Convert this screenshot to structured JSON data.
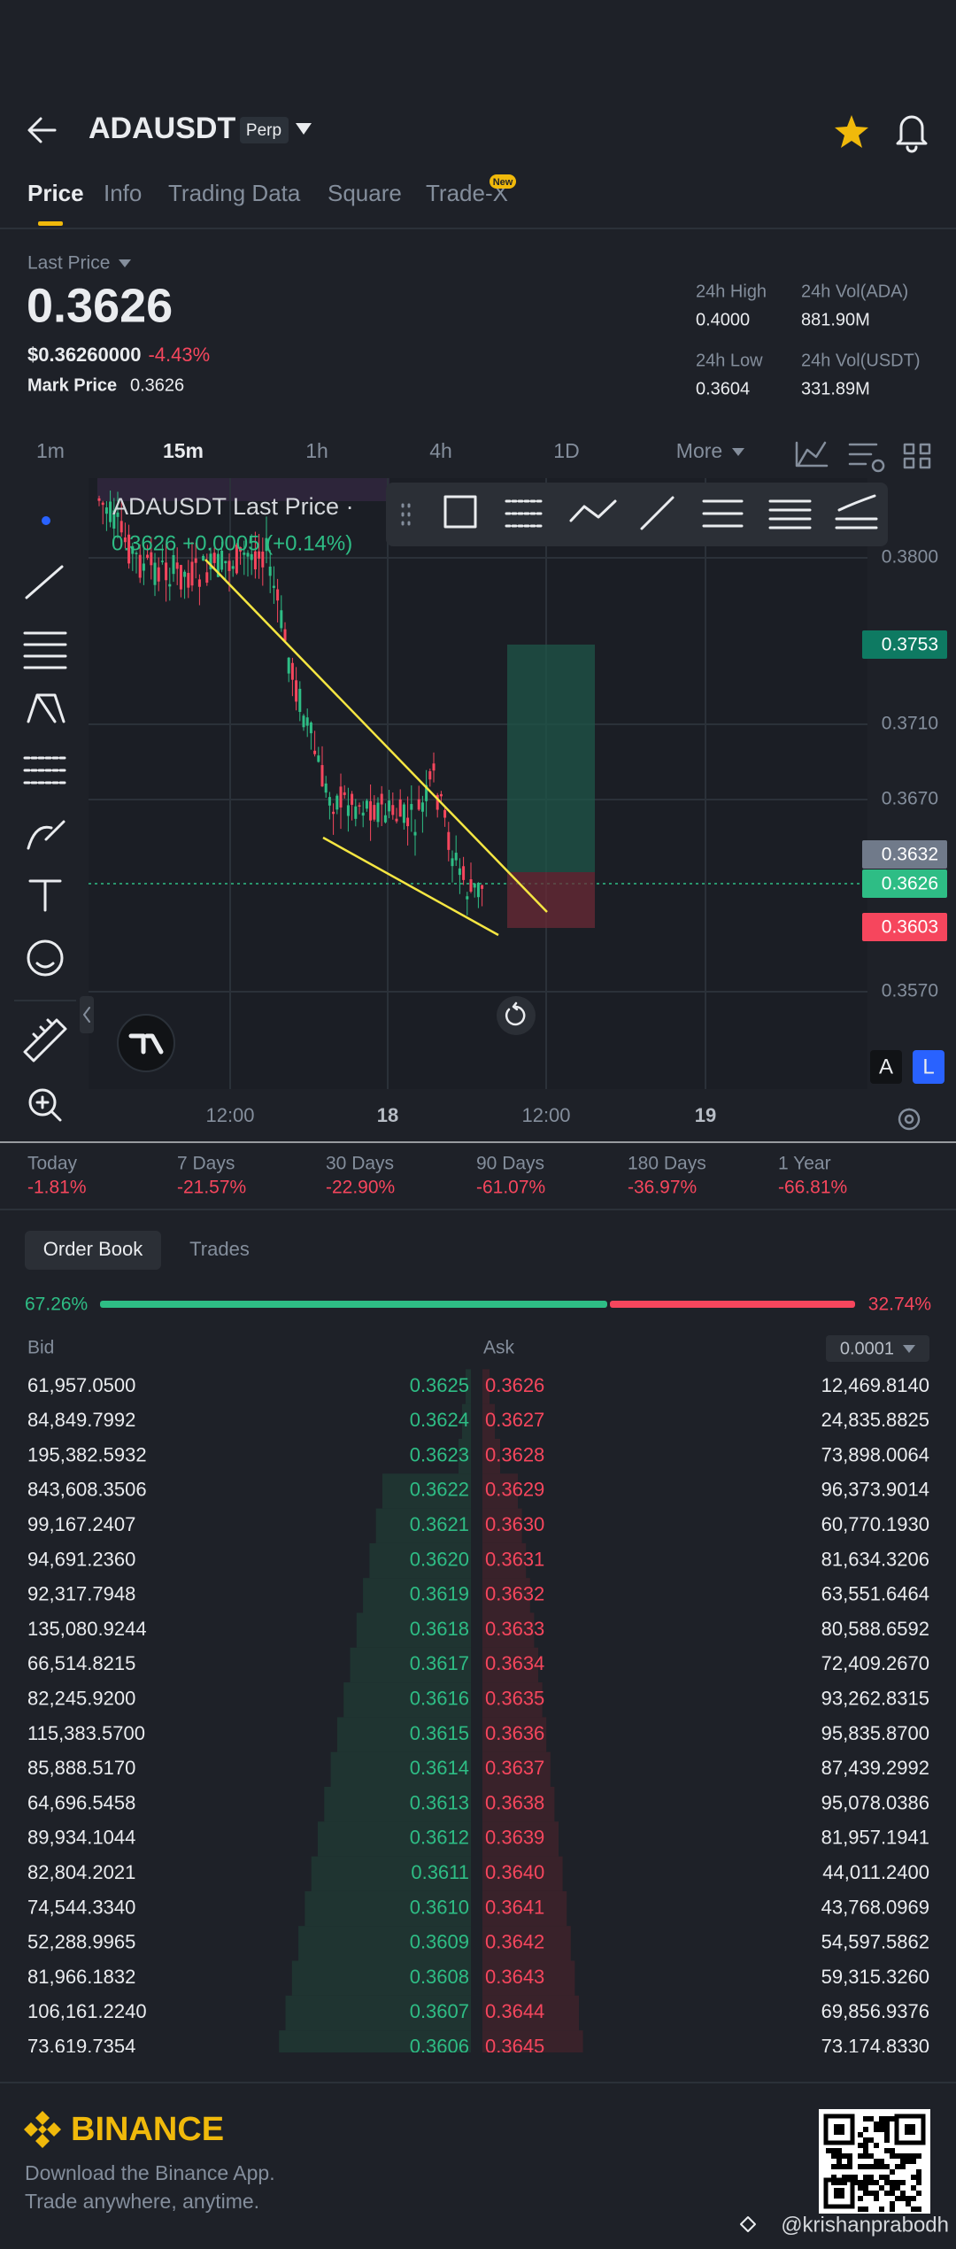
{
  "header": {
    "symbol": "ADAUSDT",
    "tag": "Perp"
  },
  "tabs": [
    "Price",
    "Info",
    "Trading Data",
    "Square",
    "Trade-X"
  ],
  "tab_badge": "New",
  "price": {
    "label": "Last Price",
    "last": "0.3626",
    "usd": "$0.36260000",
    "change": "-4.43%",
    "mark_label": "Mark Price",
    "mark": "0.3626"
  },
  "stats": {
    "high_label": "24h High",
    "high": "0.4000",
    "low_label": "24h Low",
    "low": "0.3604",
    "vol_ada_label": "24h Vol(ADA)",
    "vol_ada": "881.90M",
    "vol_usdt_label": "24h Vol(USDT)",
    "vol_usdt": "331.89M"
  },
  "timeframes": [
    "1m",
    "15m",
    "1h",
    "4h",
    "1D",
    "More"
  ],
  "chart": {
    "legend_title": "ADAUSDT Last Price ·",
    "legend_values": "0.3626 +0.0005 (+0.14%)",
    "axis_labels": [
      "0.3800",
      "0.3710",
      "0.3670",
      "0.3570"
    ],
    "tags": {
      "target": "0.3753",
      "high": "0.3632",
      "last": "0.3626",
      "stop": "0.3603"
    },
    "time_labels": [
      "12:00",
      "18",
      "12:00",
      "19"
    ],
    "scale_buttons": [
      "A",
      "L"
    ]
  },
  "performance": [
    {
      "label": "Today",
      "value": "-1.81%"
    },
    {
      "label": "7 Days",
      "value": "-21.57%"
    },
    {
      "label": "30 Days",
      "value": "-22.90%"
    },
    {
      "label": "90 Days",
      "value": "-61.07%"
    },
    {
      "label": "180 Days",
      "value": "-36.97%"
    },
    {
      "label": "1 Year",
      "value": "-66.81%"
    }
  ],
  "order_book": {
    "tabs": [
      "Order Book",
      "Trades"
    ],
    "bid_ratio": "67.26%",
    "ask_ratio": "32.74%",
    "bid_header": "Bid",
    "ask_header": "Ask",
    "precision": "0.0001",
    "rows": [
      [
        "61,957.0500",
        "0.3625",
        "0.3626",
        "12,469.8140"
      ],
      [
        "84,849.7992",
        "0.3624",
        "0.3627",
        "24,835.8825"
      ],
      [
        "195,382.5932",
        "0.3623",
        "0.3628",
        "73,898.0064"
      ],
      [
        "843,608.3506",
        "0.3622",
        "0.3629",
        "96,373.9014"
      ],
      [
        "99,167.2407",
        "0.3621",
        "0.3630",
        "60,770.1930"
      ],
      [
        "94,691.2360",
        "0.3620",
        "0.3631",
        "81,634.3206"
      ],
      [
        "92,317.7948",
        "0.3619",
        "0.3632",
        "63,551.6464"
      ],
      [
        "135,080.9244",
        "0.3618",
        "0.3633",
        "80,588.6592"
      ],
      [
        "66,514.8215",
        "0.3617",
        "0.3634",
        "72,409.2670"
      ],
      [
        "82,245.9200",
        "0.3616",
        "0.3635",
        "93,262.8315"
      ],
      [
        "115,383.5700",
        "0.3615",
        "0.3636",
        "95,835.8700"
      ],
      [
        "85,888.5170",
        "0.3614",
        "0.3637",
        "87,439.2992"
      ],
      [
        "64,696.5458",
        "0.3613",
        "0.3638",
        "95,078.0386"
      ],
      [
        "89,934.1044",
        "0.3612",
        "0.3639",
        "81,957.1941"
      ],
      [
        "82,804.2021",
        "0.3611",
        "0.3640",
        "44,011.2400"
      ],
      [
        "74,544.3340",
        "0.3610",
        "0.3641",
        "43,768.0969"
      ],
      [
        "52,288.9965",
        "0.3609",
        "0.3642",
        "54,597.5862"
      ],
      [
        "81,966.1832",
        "0.3608",
        "0.3643",
        "59,315.3260"
      ],
      [
        "106,161.2240",
        "0.3607",
        "0.3644",
        "69,856.9376"
      ],
      [
        "73,619.7354",
        "0.3606",
        "0.3645",
        "73,174.8330"
      ]
    ]
  },
  "footer": {
    "brand": "BINANCE",
    "line1": "Download the Binance App.",
    "line2": "Trade anywhere, anytime.",
    "watermark": "@krishanprabodh"
  }
}
